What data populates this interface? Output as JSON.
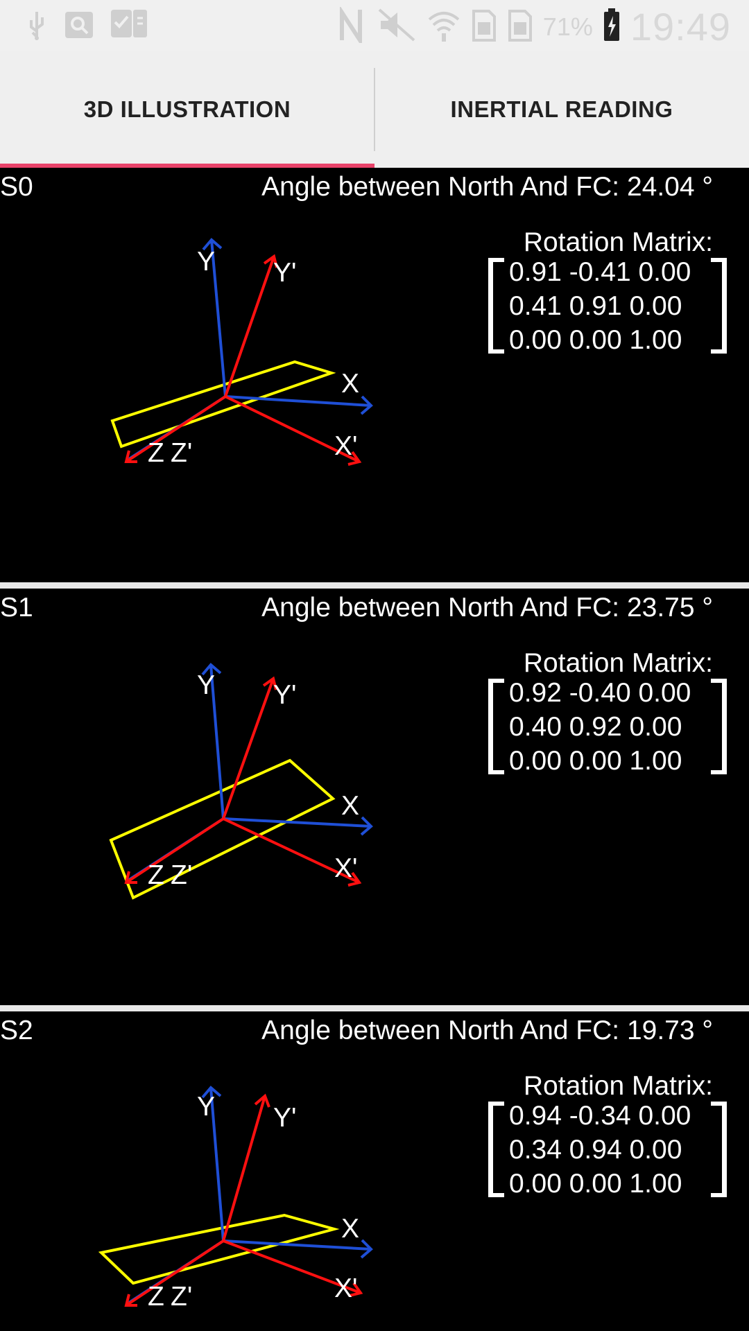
{
  "status_bar": {
    "battery_percent": "71%",
    "time": "19:49",
    "icons_left": [
      "usb-icon",
      "search-icon",
      "checklist-icon"
    ],
    "icons_right": [
      "nfc-icon",
      "mute-icon",
      "wifi-icon",
      "sim1-icon",
      "sim2-icon",
      "battery-charging-icon"
    ]
  },
  "tabs": [
    {
      "label": "3D ILLUSTRATION",
      "selected": true
    },
    {
      "label": "INERTIAL READING",
      "selected": false
    }
  ],
  "colors": {
    "accent": "#e8436a",
    "reference_axis": "#1f4fd6",
    "rotated_axis": "#ff1010",
    "plane": "#ffff00"
  },
  "axis_labels": {
    "x": "X",
    "y": "Y",
    "z": "Z",
    "x_prime": "X'",
    "y_prime": "Y'",
    "z_prime": "Z'"
  },
  "sensors": [
    {
      "id": "S0",
      "angle_text": "Angle between North And FC: 24.04 °",
      "matrix_title": "Rotation Matrix:",
      "matrix_rows": [
        "0.91 -0.41 0.00",
        "0.41 0.91 0.00",
        "0.00 0.00 1.00"
      ]
    },
    {
      "id": "S1",
      "angle_text": "Angle between North And FC: 23.75 °",
      "matrix_title": "Rotation Matrix:",
      "matrix_rows": [
        "0.92 -0.40 0.00",
        "0.40 0.92 0.00",
        "0.00 0.00 1.00"
      ]
    },
    {
      "id": "S2",
      "angle_text": "Angle between North And FC: 19.73 °",
      "matrix_title": "Rotation Matrix:",
      "matrix_rows": [
        "0.94 -0.34 0.00",
        "0.34 0.94 0.00",
        "0.00 0.00 1.00"
      ]
    }
  ]
}
